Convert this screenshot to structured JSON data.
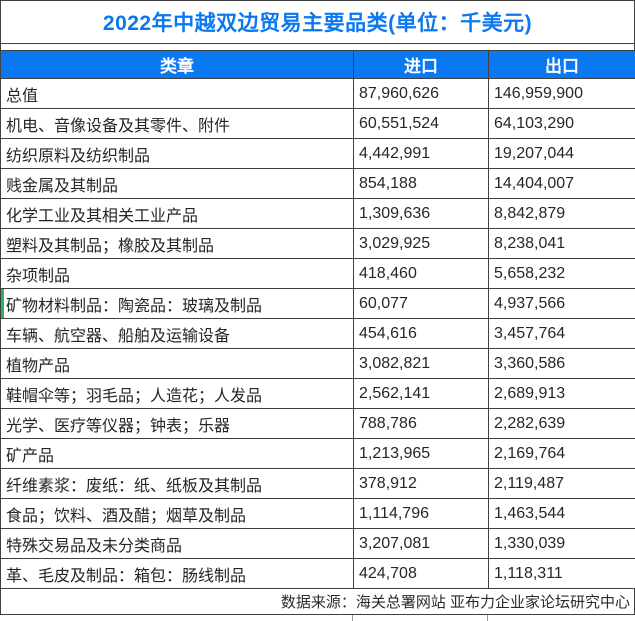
{
  "title": "2022年中越双边贸易主要品类(单位：千美元)",
  "colors": {
    "header_bg": "#0a78f0",
    "title_text": "#0a78f0",
    "border": "#404040",
    "green_accent": "#2eb553",
    "light_line": "#9b9b9b"
  },
  "footer": {
    "source_text": "数据来源：海关总署网站 亚布力企业家论坛研究中心"
  },
  "chart_data": {
    "type": "table",
    "title": "2022年中越双边贸易主要品类(单位：千美元)",
    "unit": "千美元",
    "columns": [
      "类章",
      "进口",
      "出口"
    ],
    "header": {
      "category": "类章",
      "import": "进口",
      "export": "出口"
    },
    "rows": [
      {
        "category": "总值",
        "import": "87,960,626",
        "export": "146,959,900"
      },
      {
        "category": "机电、音像设备及其零件、附件",
        "import": "60,551,524",
        "export": "64,103,290"
      },
      {
        "category": "纺织原料及纺织制品",
        "import": "4,442,991",
        "export": "19,207,044"
      },
      {
        "category": "贱金属及其制品",
        "import": "854,188",
        "export": "14,404,007"
      },
      {
        "category": "化学工业及其相关工业产品",
        "import": "1,309,636",
        "export": "8,842,879"
      },
      {
        "category": "塑料及其制品；橡胶及其制品",
        "import": "3,029,925",
        "export": "8,238,041"
      },
      {
        "category": "杂项制品",
        "import": "418,460",
        "export": "5,658,232"
      },
      {
        "category": "矿物材料制品：陶瓷品：玻璃及制品",
        "import": "60,077",
        "export": "4,937,566"
      },
      {
        "category": "车辆、航空器、船舶及运输设备",
        "import": "454,616",
        "export": "3,457,764"
      },
      {
        "category": "植物产品",
        "import": "3,082,821",
        "export": "3,360,586"
      },
      {
        "category": "鞋帽伞等；羽毛品；人造花；人发品",
        "import": "2,562,141",
        "export": "2,689,913"
      },
      {
        "category": "光学、医疗等仪器；钟表；乐器",
        "import": "788,786",
        "export": "2,282,639"
      },
      {
        "category": "矿产品",
        "import": "1,213,965",
        "export": "2,169,764"
      },
      {
        "category": "纤维素浆：废纸：纸、纸板及其制品",
        "import": "378,912",
        "export": "2,119,487"
      },
      {
        "category": "食品；饮料、酒及醋；烟草及制品",
        "import": "1,114,796",
        "export": "1,463,544"
      },
      {
        "category": "特殊交易品及未分类商品",
        "import": "3,207,081",
        "export": "1,330,039"
      },
      {
        "category": "革、毛皮及制品：箱包：肠线制品",
        "import": "424,708",
        "export": "1,118,311"
      }
    ],
    "source": "数据来源：海关总署网站 亚布力企业家论坛研究中心",
    "layout": {
      "grid": true,
      "title_position": "top-center",
      "source_position": "bottom-right"
    }
  }
}
